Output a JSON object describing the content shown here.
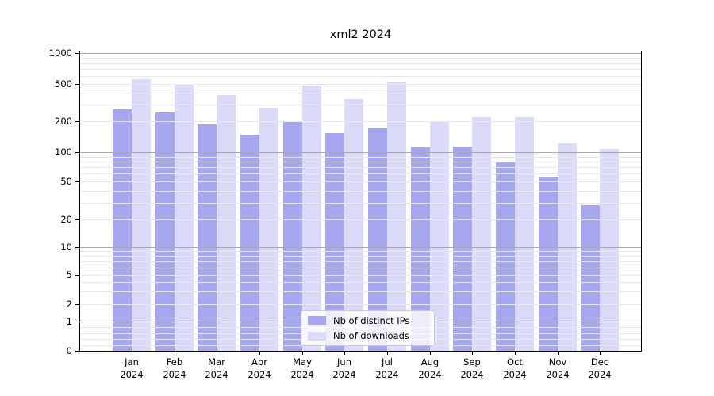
{
  "title": "xml2 2024",
  "chart_data": {
    "type": "bar",
    "title": "xml2 2024",
    "categories": [
      "Jan",
      "Feb",
      "Mar",
      "Apr",
      "May",
      "Jun",
      "Jul",
      "Aug",
      "Sep",
      "Oct",
      "Nov",
      "Dec"
    ],
    "x_label_year": "2024",
    "series": [
      {
        "name": "Nb of distinct IPs",
        "color": "#a7a7f0",
        "values": [
          270,
          250,
          186,
          147,
          196,
          153,
          171,
          111,
          113,
          80,
          56,
          28
        ]
      },
      {
        "name": "Nb of downloads",
        "color": "#dbdbf9",
        "values": [
          555,
          500,
          380,
          277,
          479,
          348,
          528,
          200,
          221,
          222,
          122,
          107
        ]
      }
    ],
    "y_axis": {
      "scale": "symlog",
      "ticks": [
        0,
        1,
        2,
        5,
        10,
        20,
        50,
        100,
        200,
        500,
        1000
      ],
      "ylim": [
        0,
        1000
      ]
    },
    "grid": {
      "enabled": true,
      "major_color": "#a8a8a8",
      "minor_color": "#e8e8e8"
    },
    "legend": {
      "position": "lower-center"
    }
  }
}
